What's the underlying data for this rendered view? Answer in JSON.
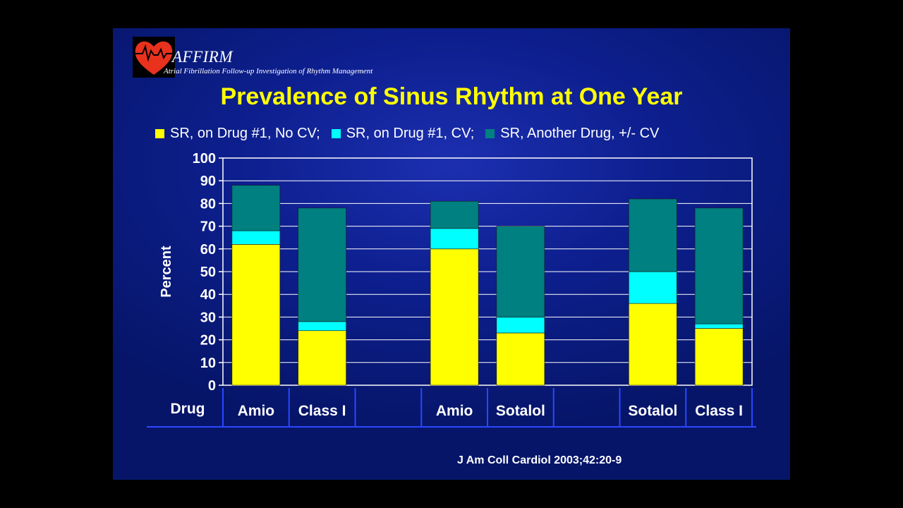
{
  "header": {
    "logo_title": "AFFIRM",
    "logo_subtitle": "Atrial Fibrillation Follow-up Investigation of Rhythm Management"
  },
  "title": "Prevalence of Sinus Rhythm at One Year",
  "citation": "J Am Coll Cardiol 2003;42:20-9",
  "colors": {
    "background": "#0d1f8e",
    "title": "#ffff00",
    "series1": "#ffff00",
    "series2": "#00ffff",
    "series3": "#008080"
  },
  "chart_data": {
    "type": "bar",
    "stacked": true,
    "title": "Prevalence of Sinus Rhythm at One Year",
    "ylabel": "Percent",
    "xlabel": "Drug",
    "ylim": [
      0,
      100
    ],
    "yticks": [
      0,
      10,
      20,
      30,
      40,
      50,
      60,
      70,
      80,
      90,
      100
    ],
    "grid": true,
    "legend_position": "top",
    "categories": [
      "Amio",
      "Class I",
      "",
      "Amio",
      "Sotalol",
      "",
      "Sotalol",
      "Class I"
    ],
    "series": [
      {
        "name": "SR, on Drug #1, No CV;",
        "color": "#ffff00",
        "values": [
          62,
          24,
          null,
          60,
          23,
          null,
          36,
          25
        ]
      },
      {
        "name": "SR, on Drug #1, CV;",
        "color": "#00ffff",
        "values": [
          6,
          4,
          null,
          9,
          7,
          null,
          14,
          2
        ]
      },
      {
        "name": "SR, Another Drug, +/- CV",
        "color": "#008080",
        "values": [
          20,
          50,
          null,
          12,
          40,
          null,
          32,
          51
        ]
      }
    ]
  }
}
